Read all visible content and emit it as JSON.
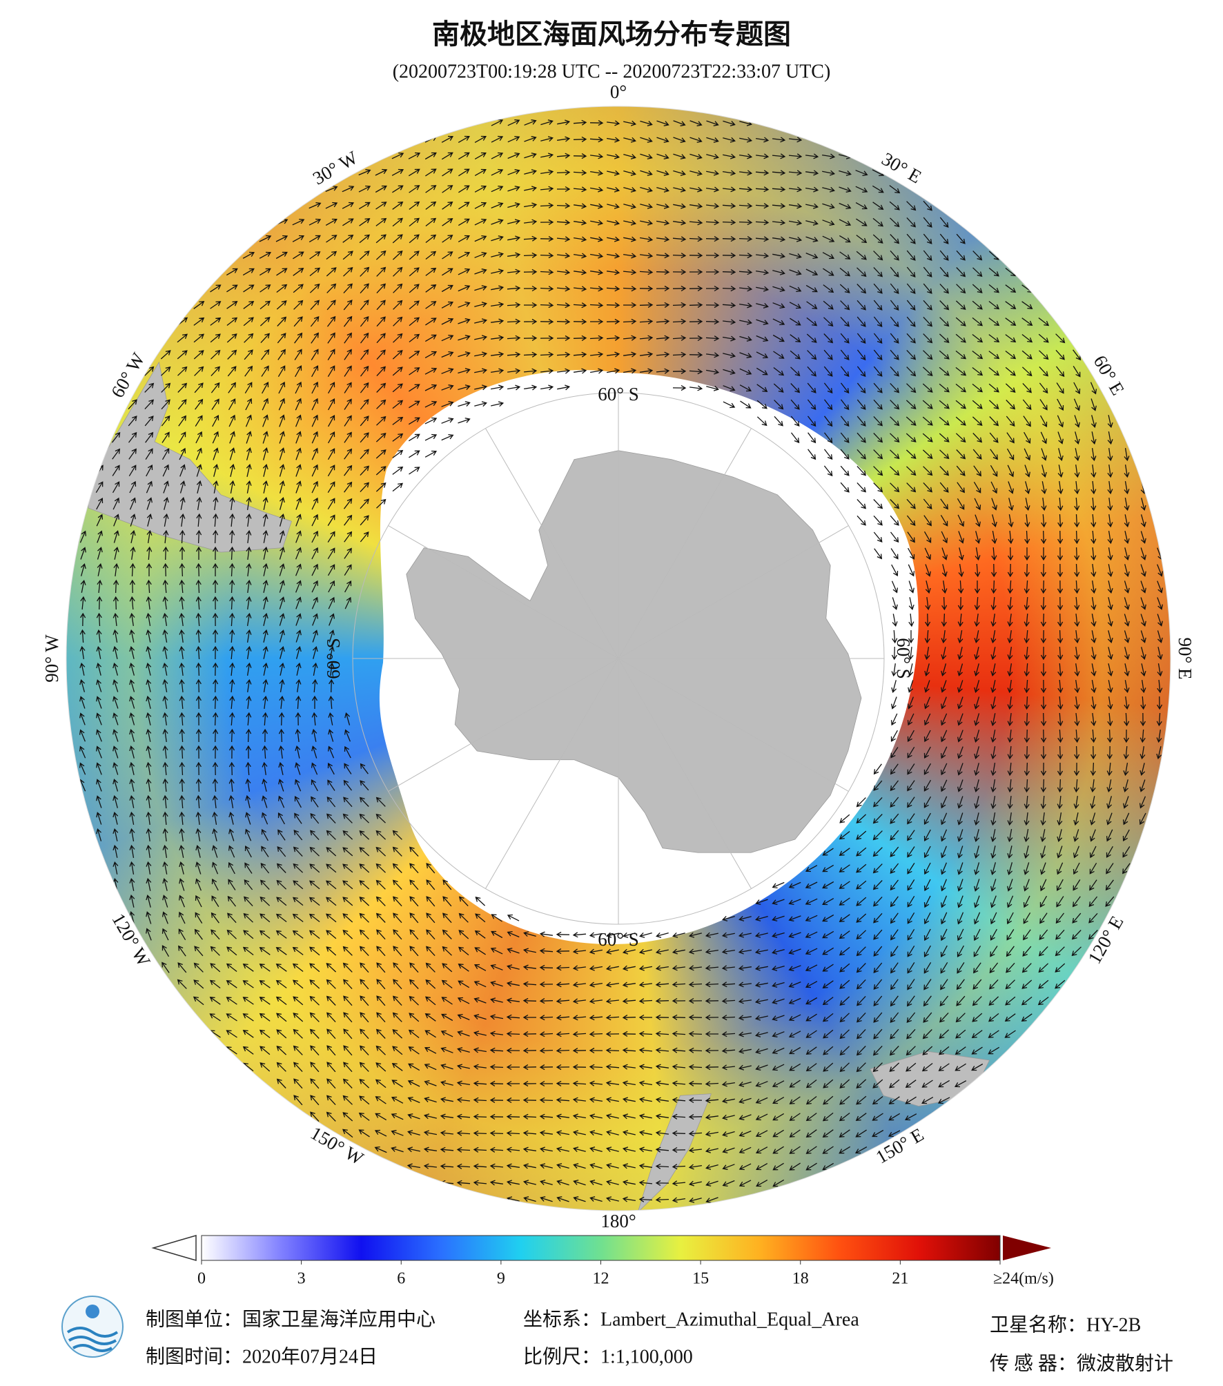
{
  "header": {
    "title": "南极地区海面风场分布专题图",
    "subtitle": "(20200723T00:19:28 UTC -- 20200723T22:33:07 UTC)"
  },
  "map": {
    "longitude_labels": [
      "0°",
      "30° E",
      "60° E",
      "90° E",
      "120° E",
      "150° E",
      "180°",
      "150° W",
      "120° W",
      "90° W",
      "60° W",
      "30° W"
    ],
    "latitude_label": "60° S"
  },
  "colorbar": {
    "lim": [
      0,
      24
    ],
    "ticks": [
      0,
      3,
      6,
      9,
      12,
      15,
      18,
      21,
      {
        "value": 24,
        "label": "≥24(m/s)"
      }
    ],
    "colors": [
      "#ffffff",
      "#8080ff",
      "#1010f0",
      "#2a70ff",
      "#20d0f0",
      "#70e090",
      "#e8f040",
      "#ffb020",
      "#ff5010",
      "#e01008",
      "#800000"
    ]
  },
  "footer": {
    "organization": "制图单位：国家卫星海洋应用中心",
    "date": "制图时间：2020年07月24日",
    "projection": "坐标系：Lambert_Azimuthal_Equal_Area",
    "scale": "比例尺：1:1,100,000",
    "satellite": "卫星名称：HY-2B",
    "sensor": "传 感 器：微波散射计"
  }
}
